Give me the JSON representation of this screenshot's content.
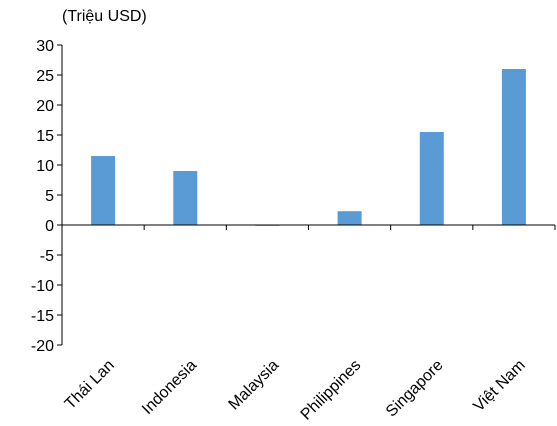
{
  "chart_data": {
    "type": "bar",
    "unit_label": "(Triệu USD)",
    "categories": [
      "Thái Lan",
      "Indonesia",
      "Malaysia",
      "Philippines",
      "Singapore",
      "Việt Nam"
    ],
    "values": [
      11.5,
      9,
      -0.1,
      2.3,
      15.5,
      26
    ],
    "ylim": [
      -20,
      30
    ],
    "yticks": [
      30,
      25,
      20,
      15,
      10,
      5,
      0,
      -5,
      -10,
      -15,
      -20
    ],
    "ytick_labels": [
      "30",
      "25",
      "20",
      "15",
      "10",
      "5",
      "0",
      "-5",
      "-10",
      "-15",
      "-20"
    ],
    "bar_color": "#5b9bd5",
    "grid": false,
    "legend": "none"
  }
}
